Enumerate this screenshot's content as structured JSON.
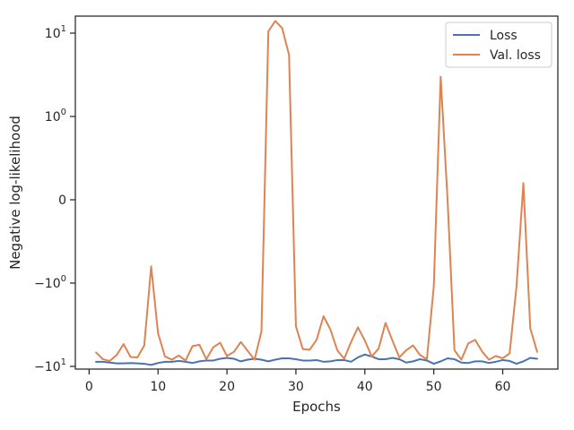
{
  "chart_data": {
    "type": "line",
    "title": "",
    "xlabel": "Epochs",
    "ylabel": "Negative log-likelihood",
    "yscale": "symlog",
    "xlim": [
      -2,
      68
    ],
    "x_ticks": [
      {
        "value": 0,
        "label": "0"
      },
      {
        "value": 10,
        "label": "10"
      },
      {
        "value": 20,
        "label": "20"
      },
      {
        "value": 30,
        "label": "30"
      },
      {
        "value": 40,
        "label": "40"
      },
      {
        "value": 50,
        "label": "50"
      },
      {
        "value": 60,
        "label": "60"
      }
    ],
    "y_ticks": [
      {
        "value": 10,
        "base": "10",
        "exp": "1"
      },
      {
        "value": 1,
        "base": "10",
        "exp": "0"
      },
      {
        "value": 0,
        "base": "0",
        "exp": ""
      },
      {
        "value": -1,
        "base": "−10",
        "exp": "0"
      },
      {
        "value": -10,
        "base": "−10",
        "exp": "1"
      }
    ],
    "legend_position": "top-right",
    "grid": false,
    "x": [
      1,
      2,
      3,
      4,
      5,
      6,
      7,
      8,
      9,
      10,
      11,
      12,
      13,
      14,
      15,
      16,
      17,
      18,
      19,
      20,
      21,
      22,
      23,
      24,
      25,
      26,
      27,
      28,
      29,
      30,
      31,
      32,
      33,
      34,
      35,
      36,
      37,
      38,
      39,
      40,
      41,
      42,
      43,
      44,
      45,
      46,
      47,
      48,
      49,
      50,
      51,
      52,
      53,
      54,
      55,
      56,
      57,
      58,
      59,
      60,
      61,
      62,
      63,
      64,
      65
    ],
    "series": [
      {
        "name": "Loss",
        "color": "#4c72b0",
        "values": [
          -8.8,
          -8.8,
          -9.0,
          -9.2,
          -9.2,
          -9.1,
          -9.2,
          -9.3,
          -9.6,
          -9.1,
          -8.8,
          -8.8,
          -8.6,
          -8.8,
          -9.1,
          -8.7,
          -8.5,
          -8.5,
          -8.1,
          -7.9,
          -8.1,
          -8.7,
          -8.3,
          -8.1,
          -8.3,
          -8.7,
          -8.3,
          -8.0,
          -8.0,
          -8.2,
          -8.5,
          -8.5,
          -8.4,
          -8.8,
          -8.7,
          -8.4,
          -8.4,
          -8.8,
          -7.8,
          -7.2,
          -7.6,
          -8.2,
          -8.2,
          -7.9,
          -8.2,
          -9.0,
          -8.7,
          -8.2,
          -8.5,
          -9.3,
          -8.7,
          -8.0,
          -8.2,
          -9.0,
          -9.1,
          -8.7,
          -8.7,
          -9.1,
          -8.8,
          -8.4,
          -8.6,
          -9.3,
          -8.7,
          -7.9,
          -8.1
        ]
      },
      {
        "name": "Val. loss",
        "color": "#dd8452",
        "values": [
          -6.8,
          -8.2,
          -8.6,
          -7.3,
          -5.4,
          -7.7,
          -7.8,
          -5.6,
          -0.8,
          -4.0,
          -7.6,
          -8.3,
          -7.4,
          -8.5,
          -5.7,
          -5.5,
          -8.2,
          -5.9,
          -5.2,
          -7.5,
          -6.7,
          -5.1,
          -6.5,
          -8.3,
          -3.8,
          10.5,
          14.0,
          11.5,
          5.5,
          -3.3,
          -6.2,
          -6.3,
          -4.8,
          -2.5,
          -3.6,
          -6.4,
          -8.1,
          -5.1,
          -3.4,
          -4.9,
          -7.6,
          -6.1,
          -3.0,
          -4.9,
          -7.8,
          -6.4,
          -5.6,
          -7.3,
          -8.2,
          -1.1,
          3.0,
          -0.0,
          -6.4,
          -8.3,
          -5.3,
          -4.8,
          -6.6,
          -8.3,
          -7.5,
          -8.0,
          -7.0,
          -1.1,
          0.2,
          -3.5,
          -6.7
        ]
      }
    ]
  }
}
